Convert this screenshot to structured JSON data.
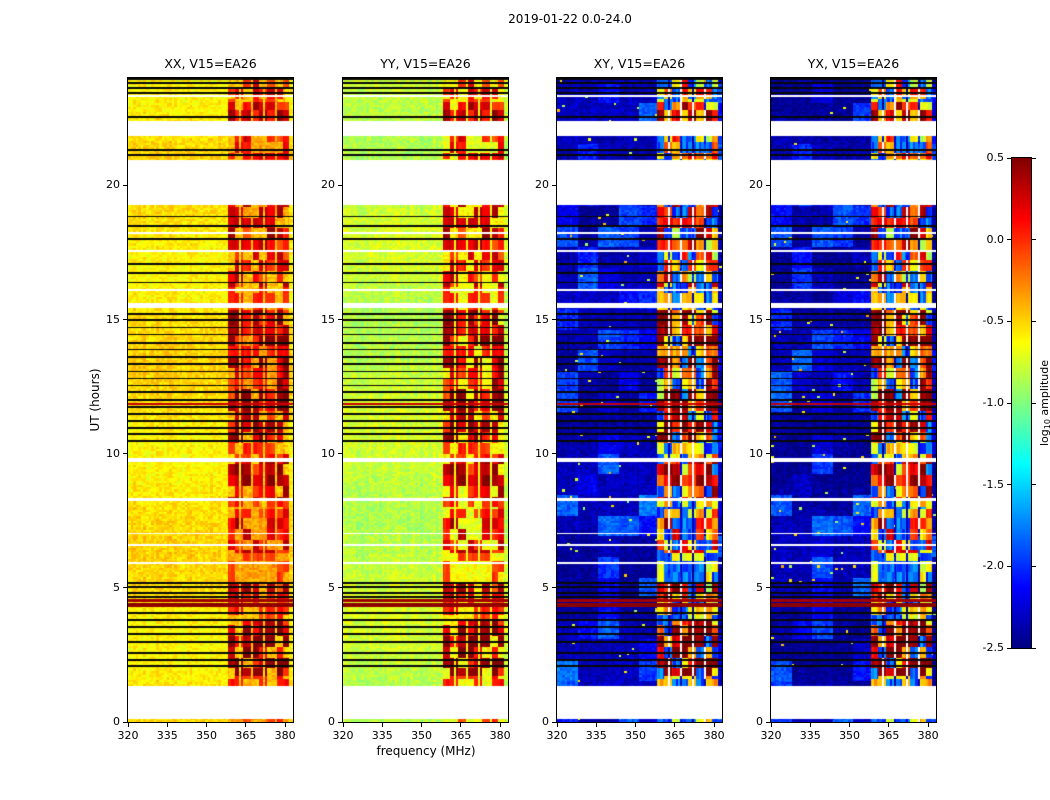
{
  "figure": {
    "title": "2019-01-22 0.0-24.0"
  },
  "chart_data": {
    "type": "heatmap",
    "title": "2019-01-22 0.0-24.0",
    "xlabel": "frequency (MHz)",
    "ylabel": "UT (hours)",
    "x_range": [
      320,
      383
    ],
    "x_ticks": [
      320,
      335,
      350,
      365,
      380
    ],
    "y_range": [
      0,
      24
    ],
    "y_ticks": [
      0,
      5,
      10,
      15,
      20
    ],
    "panels": [
      {
        "pol": "XX",
        "title": "XX, V15=EA26",
        "base_level": -0.55
      },
      {
        "pol": "YY",
        "title": "YY, V15=EA26",
        "base_level": -0.8
      },
      {
        "pol": "XY",
        "title": "XY, V15=EA26",
        "base_level": -2.38
      },
      {
        "pol": "YX",
        "title": "YX, V15=EA26",
        "base_level": -2.4
      }
    ],
    "colorbar": {
      "label_prefix": "log",
      "label_sub": "10",
      "label_suffix": " amplitude",
      "colormap": "jet",
      "range": [
        -2.5,
        0.5
      ],
      "ticks": [
        0.5,
        0.0,
        -0.5,
        -1.0,
        -1.5,
        -2.0,
        -2.5
      ],
      "tick_labels": [
        "0.5",
        "0.0",
        "-0.5",
        "-1.0",
        "-1.5",
        "-2.0",
        "-2.5"
      ]
    },
    "no_data_color": "#ffffff",
    "flagged_color": "#000000",
    "rfi_band_mhz": [
      358,
      381.5
    ],
    "no_data_gaps_ut": [
      [
        0.12,
        1.35
      ],
      [
        5.9,
        5.98
      ],
      [
        6.55,
        6.63
      ],
      [
        7.0,
        7.06
      ],
      [
        8.22,
        8.34
      ],
      [
        9.7,
        9.82
      ],
      [
        15.42,
        15.62
      ],
      [
        16.06,
        16.14
      ],
      [
        17.52,
        17.58
      ],
      [
        18.2,
        18.26
      ],
      [
        19.25,
        20.95
      ],
      [
        21.85,
        22.4
      ],
      [
        23.3,
        23.38
      ]
    ],
    "flagged_rows_ut": [
      2.08,
      2.32,
      2.58,
      2.99,
      3.28,
      3.55,
      3.81,
      4.05,
      4.66,
      4.82,
      5.02,
      5.18,
      10.48,
      10.72,
      10.96,
      11.22,
      11.49,
      11.74,
      12.01,
      12.29,
      12.54,
      12.8,
      13.06,
      13.34,
      13.61,
      13.88,
      14.14,
      14.44,
      14.7,
      14.98,
      15.19,
      16.38,
      16.72,
      17.08,
      17.99,
      18.47,
      18.84,
      21.12,
      21.33,
      22.55,
      23.45,
      23.62,
      23.8,
      23.96
    ],
    "broadband_events_ut": [
      [
        4.28,
        4.44,
        0.46
      ],
      [
        4.48,
        4.6,
        0.4
      ],
      [
        11.82,
        11.88,
        0.3
      ]
    ],
    "rfi_windows": [
      {
        "range": [
          1.7,
          3.75
        ],
        "gain": 1.25
      },
      {
        "range": [
          4.5,
          5.2
        ],
        "gain": 1.0
      },
      {
        "range": [
          5.2,
          6.3
        ],
        "gain": 0.6
      },
      {
        "range": [
          6.3,
          7.95
        ],
        "gain": 1.0
      },
      {
        "range": [
          8.35,
          9.7
        ],
        "gain": 1.15
      },
      {
        "range": [
          9.85,
          10.45
        ],
        "gain": 0.8
      },
      {
        "range": [
          10.45,
          15.35
        ],
        "gain": 1.2
      },
      {
        "range": [
          16.2,
          19.25
        ],
        "gain": 1.0
      },
      {
        "range": [
          21.0,
          21.85
        ],
        "gain": 0.9
      },
      {
        "range": [
          22.4,
          23.1
        ],
        "gain": 1.1
      },
      {
        "range": [
          23.35,
          24.0
        ],
        "gain": 0.9
      }
    ]
  }
}
